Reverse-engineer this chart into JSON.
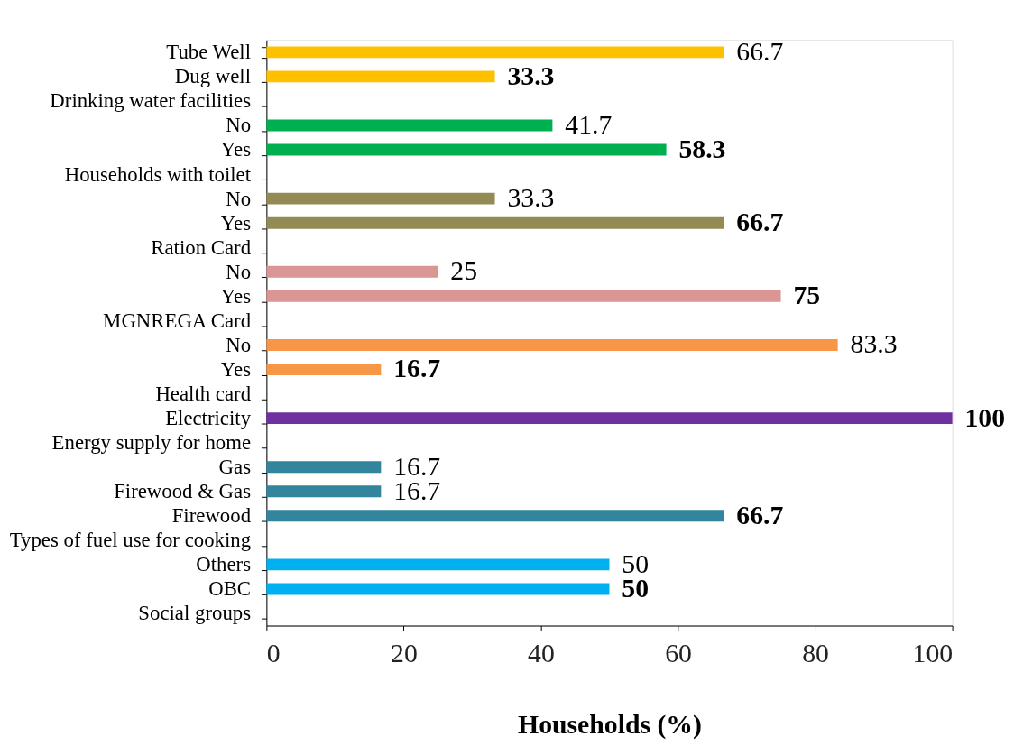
{
  "chart_data": {
    "type": "bar",
    "orientation": "horizontal",
    "xlabel": "Households (%)",
    "categories": [
      "Tube Well",
      "Dug well",
      "Drinking water facilities",
      "No",
      "Yes",
      "Households with toilet",
      "No",
      "Yes",
      "Ration Card",
      "No",
      "Yes",
      "MGNREGA Card",
      "No",
      "Yes",
      "Health card",
      "Electricity",
      "Energy supply for home",
      "Gas",
      "Firewood & Gas",
      "Firewood",
      "Types of fuel use for cooking",
      "Others",
      "OBC",
      "Social groups"
    ],
    "values": [
      66.7,
      33.3,
      null,
      41.7,
      58.3,
      null,
      33.3,
      66.7,
      null,
      25,
      75,
      null,
      83.3,
      16.7,
      null,
      100,
      null,
      16.7,
      16.7,
      66.7,
      null,
      50,
      50,
      null
    ],
    "colors": [
      "#ffc000",
      "#ffc000",
      null,
      "#00b050",
      "#00b050",
      null,
      "#948a54",
      "#948a54",
      null,
      "#d99694",
      "#d99694",
      null,
      "#f79646",
      "#f79646",
      null,
      "#7030a0",
      null,
      "#31859c",
      "#31859c",
      "#31859c",
      null,
      "#00b0f0",
      "#00b0f0",
      null
    ],
    "xlim": [
      0,
      100
    ],
    "xticks": [
      0,
      20,
      40,
      60,
      80,
      100
    ],
    "data_labels": true,
    "grid": false
  }
}
